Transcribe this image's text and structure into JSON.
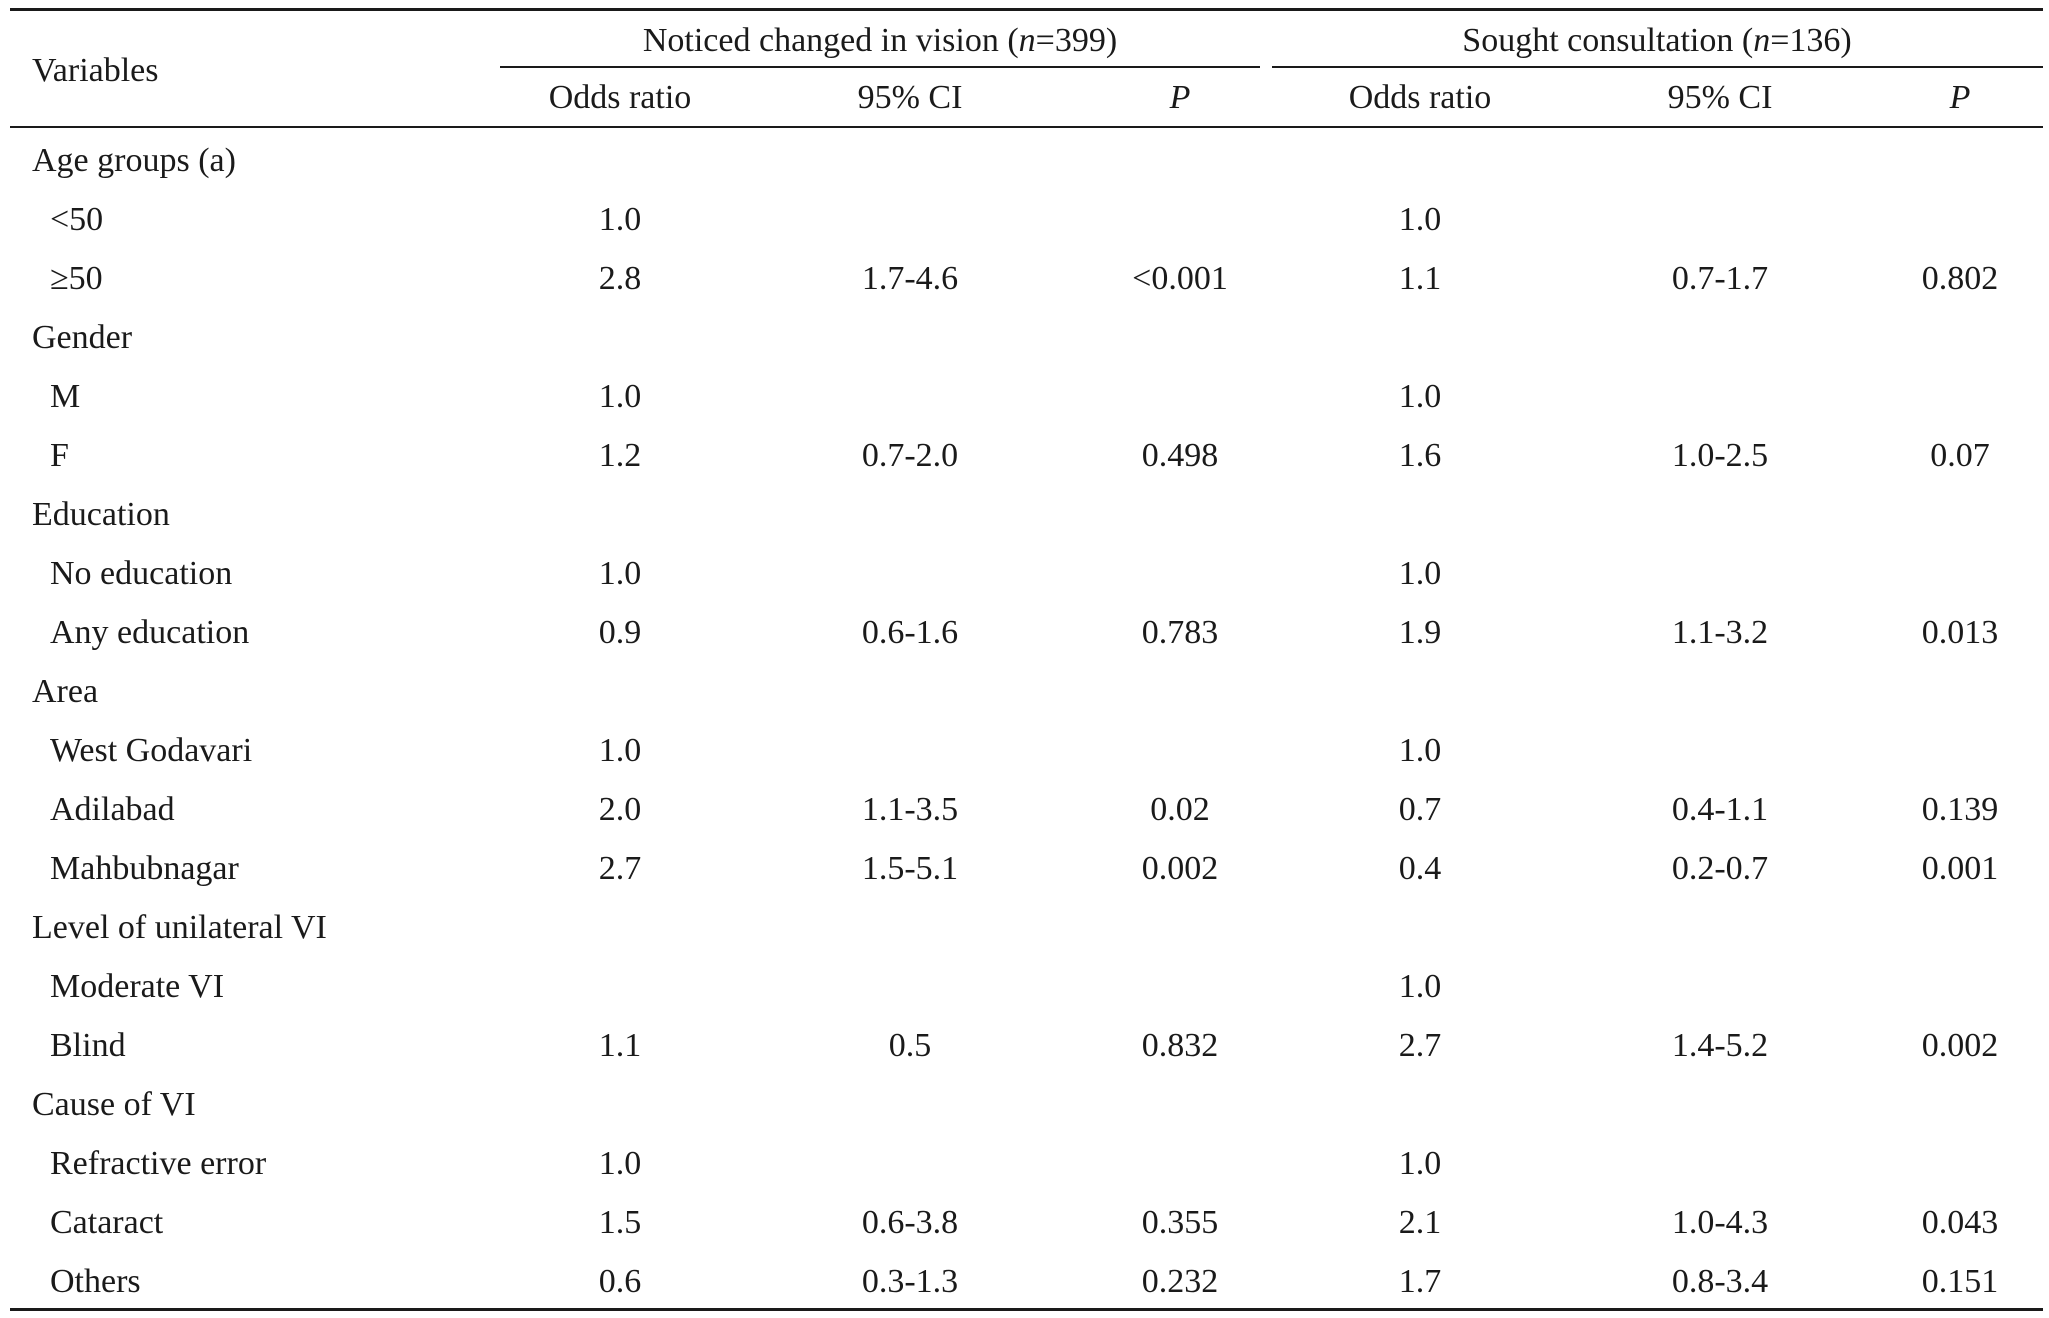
{
  "header": {
    "variables": "Variables",
    "group1": {
      "pre": "Noticed changed in vision (",
      "n": "n",
      "post": "=399)"
    },
    "group2": {
      "pre": "Sought consultation (",
      "n": "n",
      "post": "=136)"
    },
    "sub": {
      "or": "Odds ratio",
      "ci": "95% CI",
      "p": "P"
    }
  },
  "rows": [
    {
      "kind": "section",
      "label": "Age groups (a)"
    },
    {
      "kind": "data",
      "label": "<50",
      "or1": "1.0",
      "ci1": "",
      "p1": "",
      "or2": "1.0",
      "ci2": "",
      "p2": ""
    },
    {
      "kind": "data",
      "label": "≥50",
      "or1": "2.8",
      "ci1": "1.7-4.6",
      "p1": "<0.001",
      "or2": "1.1",
      "ci2": "0.7-1.7",
      "p2": "0.802"
    },
    {
      "kind": "section",
      "label": "Gender"
    },
    {
      "kind": "data",
      "label": "M",
      "or1": "1.0",
      "ci1": "",
      "p1": "",
      "or2": "1.0",
      "ci2": "",
      "p2": ""
    },
    {
      "kind": "data",
      "label": "F",
      "or1": "1.2",
      "ci1": "0.7-2.0",
      "p1": "0.498",
      "or2": "1.6",
      "ci2": "1.0-2.5",
      "p2": "0.07"
    },
    {
      "kind": "section",
      "label": "Education"
    },
    {
      "kind": "data",
      "label": "No education",
      "or1": "1.0",
      "ci1": "",
      "p1": "",
      "or2": "1.0",
      "ci2": "",
      "p2": ""
    },
    {
      "kind": "data",
      "label": "Any education",
      "or1": "0.9",
      "ci1": "0.6-1.6",
      "p1": "0.783",
      "or2": "1.9",
      "ci2": "1.1-3.2",
      "p2": "0.013"
    },
    {
      "kind": "section",
      "label": "Area"
    },
    {
      "kind": "data",
      "label": "West Godavari",
      "or1": "1.0",
      "ci1": "",
      "p1": "",
      "or2": "1.0",
      "ci2": "",
      "p2": ""
    },
    {
      "kind": "data",
      "label": "Adilabad",
      "or1": "2.0",
      "ci1": "1.1-3.5",
      "p1": "0.02",
      "or2": "0.7",
      "ci2": "0.4-1.1",
      "p2": "0.139"
    },
    {
      "kind": "data",
      "label": "Mahbubnagar",
      "or1": "2.7",
      "ci1": "1.5-5.1",
      "p1": "0.002",
      "or2": "0.4",
      "ci2": "0.2-0.7",
      "p2": "0.001"
    },
    {
      "kind": "section",
      "label": "Level of unilateral VI"
    },
    {
      "kind": "data",
      "label": "Moderate VI",
      "or1": "",
      "ci1": "",
      "p1": "",
      "or2": "1.0",
      "ci2": "",
      "p2": ""
    },
    {
      "kind": "data",
      "label": "Blind",
      "or1": "1.1",
      "ci1": "0.5",
      "p1": "0.832",
      "or2": "2.7",
      "ci2": "1.4-5.2",
      "p2": "0.002"
    },
    {
      "kind": "section",
      "label": "Cause of VI"
    },
    {
      "kind": "data",
      "label": "Refractive error",
      "or1": "1.0",
      "ci1": "",
      "p1": "",
      "or2": "1.0",
      "ci2": "",
      "p2": ""
    },
    {
      "kind": "data",
      "label": "Cataract",
      "or1": "1.5",
      "ci1": "0.6-3.8",
      "p1": "0.355",
      "or2": "2.1",
      "ci2": "1.0-4.3",
      "p2": "0.043"
    },
    {
      "kind": "data",
      "label": "Others",
      "or1": "0.6",
      "ci1": "0.3-1.3",
      "p1": "0.232",
      "or2": "1.7",
      "ci2": "0.8-3.4",
      "p2": "0.151"
    }
  ]
}
